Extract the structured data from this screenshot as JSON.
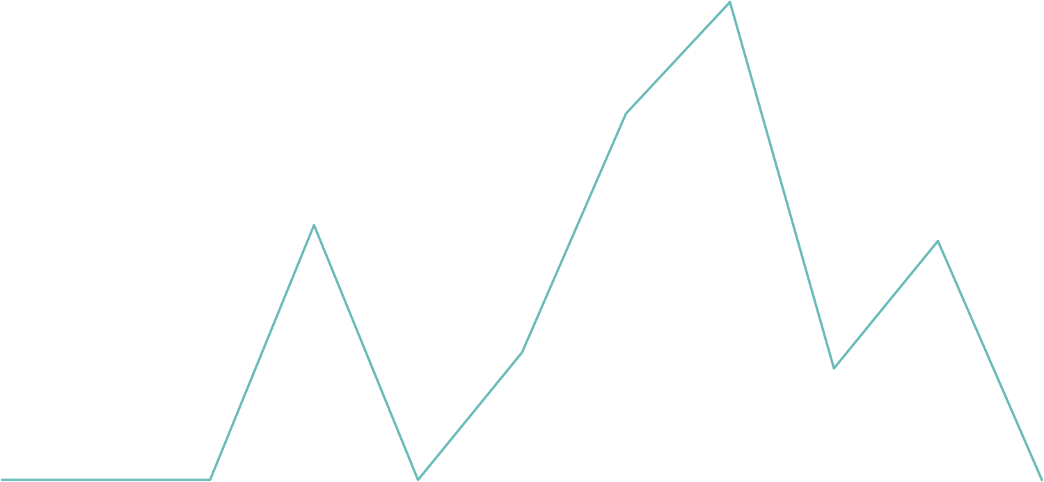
{
  "chart_data": {
    "type": "line",
    "values": [
      0,
      0,
      0,
      16,
      0,
      8,
      23,
      30,
      7,
      15,
      0
    ],
    "color": "#6bbcba",
    "ylim": [
      0,
      30
    ]
  }
}
